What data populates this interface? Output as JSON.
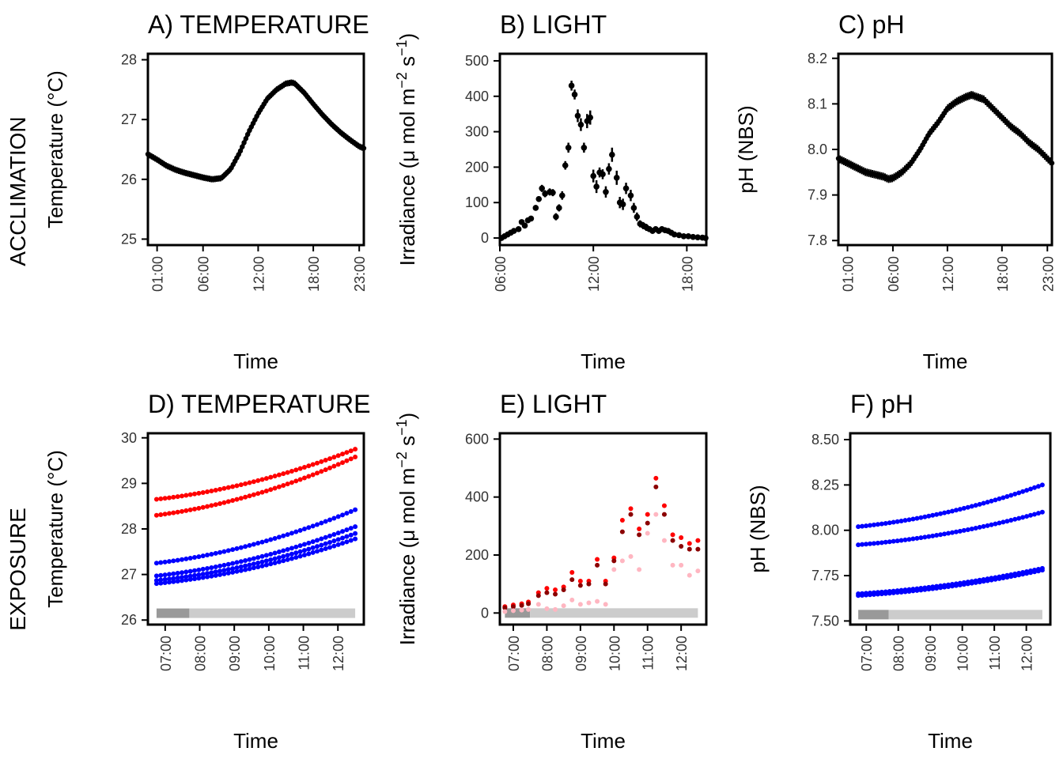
{
  "figure": {
    "row_labels": [
      "ACCLIMATION",
      "EXPOSURE"
    ]
  },
  "chart_data": [
    {
      "panel": "A",
      "type": "line",
      "title": "A) TEMPERATURE",
      "xlabel": "Time",
      "ylabel": "Temperature (°C)",
      "xlim": [
        0,
        23.5
      ],
      "ylim": [
        24.9,
        28.1
      ],
      "xtick_values": [
        1,
        6,
        12,
        18,
        23
      ],
      "xtick_labels": [
        "01:00",
        "06:00",
        "12:00",
        "18:00",
        "23:00"
      ],
      "ytick_values": [
        25,
        26,
        27,
        28
      ],
      "ytick_labels": [
        "25",
        "26",
        "27",
        "28"
      ],
      "style": "dense points with error bars",
      "color": "#000000",
      "series": [
        {
          "x": [
            0,
            1,
            2,
            3,
            4,
            5,
            6,
            7,
            8,
            9,
            10,
            11,
            12,
            13,
            14,
            15,
            15.7,
            16,
            17,
            18,
            19,
            20,
            21,
            22,
            23,
            23.5
          ],
          "y": [
            26.42,
            26.33,
            26.23,
            26.16,
            26.11,
            26.07,
            26.03,
            26.0,
            26.02,
            26.17,
            26.45,
            26.8,
            27.1,
            27.35,
            27.5,
            27.6,
            27.62,
            27.6,
            27.45,
            27.26,
            27.08,
            26.92,
            26.78,
            26.66,
            26.55,
            26.52
          ]
        }
      ]
    },
    {
      "panel": "B",
      "type": "scatter",
      "title": "B) LIGHT",
      "xlabel": "Time",
      "ylabel": "Irradiance (μ mol m⁻² s⁻¹)",
      "xlim": [
        6,
        19.25
      ],
      "ylim": [
        -20,
        520
      ],
      "xtick_values": [
        6,
        12,
        18
      ],
      "xtick_labels": [
        "06:00",
        "12:00",
        "18:00"
      ],
      "ytick_values": [
        0,
        100,
        200,
        300,
        400,
        500
      ],
      "ytick_labels": [
        "0",
        "100",
        "200",
        "300",
        "400",
        "500"
      ],
      "style": "points with error bars",
      "color": "#000000",
      "series": [
        {
          "x": [
            6.1,
            6.3,
            6.5,
            6.7,
            6.9,
            7.2,
            7.4,
            7.6,
            7.8,
            8.0,
            8.3,
            8.5,
            8.7,
            8.9,
            9.2,
            9.4,
            9.6,
            9.8,
            10.0,
            10.2,
            10.4,
            10.6,
            10.8,
            11.0,
            11.2,
            11.4,
            11.6,
            11.8,
            12.0,
            12.2,
            12.4,
            12.6,
            12.8,
            13.0,
            13.2,
            13.5,
            13.7,
            13.9,
            14.1,
            14.4,
            14.6,
            14.8,
            15.0,
            15.2,
            15.4,
            15.6,
            15.8,
            16.0,
            16.2,
            16.4,
            16.6,
            16.8,
            17.0,
            17.2,
            17.5,
            17.8,
            18.1,
            18.4,
            18.7,
            19.0,
            19.2
          ],
          "y": [
            0,
            5,
            10,
            15,
            20,
            25,
            45,
            35,
            50,
            55,
            85,
            110,
            140,
            125,
            130,
            128,
            60,
            85,
            120,
            205,
            255,
            430,
            405,
            345,
            320,
            255,
            330,
            340,
            175,
            145,
            185,
            180,
            130,
            195,
            235,
            170,
            100,
            95,
            140,
            120,
            85,
            60,
            40,
            35,
            30,
            25,
            20,
            25,
            20,
            25,
            22,
            20,
            15,
            10,
            8,
            5,
            5,
            3,
            2,
            1,
            0
          ],
          "err": [
            4,
            4,
            5,
            5,
            5,
            6,
            6,
            6,
            6,
            7,
            8,
            8,
            10,
            10,
            10,
            10,
            10,
            10,
            12,
            12,
            14,
            14,
            14,
            18,
            18,
            14,
            20,
            20,
            18,
            18,
            14,
            14,
            16,
            16,
            20,
            20,
            16,
            16,
            16,
            16,
            14,
            12,
            10,
            10,
            10,
            8,
            8,
            8,
            8,
            8,
            6,
            6,
            6,
            5,
            5,
            4,
            4,
            4,
            3,
            3,
            3
          ]
        }
      ]
    },
    {
      "panel": "C",
      "type": "line",
      "title": "C) pH",
      "xlabel": "Time",
      "ylabel": "pH (NBS)",
      "xlim": [
        0,
        23.5
      ],
      "ylim": [
        7.79,
        8.21
      ],
      "xtick_values": [
        1,
        6,
        12,
        18,
        23
      ],
      "xtick_labels": [
        "01:00",
        "06:00",
        "12:00",
        "18:00",
        "23:00"
      ],
      "ytick_values": [
        7.8,
        7.9,
        8.0,
        8.1,
        8.2
      ],
      "ytick_labels": [
        "7.8",
        "7.9",
        "8.0",
        "8.1",
        "8.2"
      ],
      "style": "dense points with error bars",
      "color": "#000000",
      "series": [
        {
          "x": [
            0,
            1,
            2,
            3,
            4,
            5,
            5.5,
            6,
            7,
            8,
            9,
            10,
            11,
            12,
            13,
            14,
            14.7,
            15,
            16,
            17,
            18,
            19,
            20,
            21,
            22,
            23,
            23.5
          ],
          "y": [
            7.98,
            7.97,
            7.96,
            7.95,
            7.945,
            7.94,
            7.935,
            7.937,
            7.95,
            7.97,
            8.0,
            8.035,
            8.06,
            8.09,
            8.105,
            8.115,
            8.12,
            8.117,
            8.11,
            8.09,
            8.07,
            8.05,
            8.035,
            8.015,
            8.0,
            7.98,
            7.97
          ]
        }
      ]
    },
    {
      "panel": "D",
      "type": "scatter",
      "title": "D) TEMPERATURE",
      "xlabel": "Time",
      "ylabel": "Temperature (°C)",
      "xlim": [
        6.5,
        12.75
      ],
      "ylim": [
        25.9,
        30.1
      ],
      "xtick_values": [
        7,
        8,
        9,
        10,
        11,
        12
      ],
      "xtick_labels": [
        "07:00",
        "08:00",
        "09:00",
        "10:00",
        "11:00",
        "12:00"
      ],
      "ytick_values": [
        26,
        27,
        28,
        29,
        30
      ],
      "ytick_labels": [
        "26",
        "27",
        "28",
        "29",
        "30"
      ],
      "x_range": [
        6.75,
        12.5
      ],
      "bars": [
        {
          "from": 6.75,
          "to": 7.7,
          "color": "#999999"
        },
        {
          "from": 7.7,
          "to": 12.5,
          "color": "#cccccc"
        }
      ],
      "bar_y": 26.15,
      "series": [
        {
          "color": "#ff0000",
          "start": 28.65,
          "end": 29.75
        },
        {
          "color": "#ff0000",
          "start": 28.3,
          "end": 29.58
        },
        {
          "color": "#0000ff",
          "start": 27.25,
          "end": 28.42
        },
        {
          "color": "#0000ff",
          "start": 26.97,
          "end": 28.05
        },
        {
          "color": "#0000ff",
          "start": 26.87,
          "end": 27.9
        },
        {
          "color": "#0000ff",
          "start": 26.8,
          "end": 27.78
        }
      ]
    },
    {
      "panel": "E",
      "type": "scatter",
      "title": "E) LIGHT",
      "xlabel": "Time",
      "ylabel": "Irradiance (μ mol m⁻² s⁻¹)",
      "xlim": [
        6.6,
        12.75
      ],
      "ylim": [
        -40,
        620
      ],
      "xtick_values": [
        7,
        8,
        9,
        10,
        11,
        12
      ],
      "xtick_labels": [
        "07:00",
        "08:00",
        "09:00",
        "10:00",
        "11:00",
        "12:00"
      ],
      "ytick_values": [
        0,
        200,
        400,
        600
      ],
      "ytick_labels": [
        "0",
        "200",
        "400",
        "600"
      ],
      "bars": [
        {
          "from": 6.75,
          "to": 7.5,
          "color": "#999999"
        },
        {
          "from": 7.5,
          "to": 12.5,
          "color": "#cccccc"
        }
      ],
      "bar_y": 0,
      "series": [
        {
          "color": "#ff0000",
          "x": [
            6.75,
            7.0,
            7.25,
            7.45,
            7.75,
            8.0,
            8.25,
            8.5,
            8.75,
            9.0,
            9.25,
            9.5,
            9.75,
            10.0,
            10.25,
            10.5,
            10.75,
            11.0,
            11.25,
            11.5,
            11.75,
            12.0,
            12.25,
            12.5
          ],
          "y": [
            22,
            28,
            32,
            38,
            70,
            85,
            80,
            90,
            140,
            110,
            110,
            185,
            110,
            190,
            320,
            360,
            290,
            340,
            465,
            370,
            270,
            260,
            240,
            250
          ]
        },
        {
          "color": "#8b0000",
          "x": [
            6.75,
            7.0,
            7.25,
            7.45,
            7.75,
            8.0,
            8.25,
            8.5,
            8.75,
            9.0,
            9.25,
            9.5,
            9.75,
            10.0,
            10.25,
            10.5,
            10.75,
            11.0,
            11.25,
            11.5,
            11.75,
            12.0,
            12.25,
            12.5
          ],
          "y": [
            18,
            22,
            26,
            32,
            60,
            70,
            65,
            80,
            115,
            95,
            100,
            165,
            100,
            180,
            280,
            340,
            270,
            310,
            435,
            340,
            250,
            230,
            220,
            220
          ]
        },
        {
          "color": "#ffb6c1",
          "x": [
            6.75,
            7.0,
            7.25,
            7.45,
            7.75,
            8.0,
            8.25,
            8.5,
            8.75,
            9.0,
            9.25,
            9.5,
            9.75,
            10.0,
            10.25,
            10.5,
            10.75,
            11.0,
            11.25,
            11.5,
            11.75,
            12.0,
            12.25,
            12.5
          ],
          "y": [
            5,
            8,
            10,
            12,
            30,
            15,
            12,
            25,
            45,
            30,
            35,
            40,
            30,
            150,
            180,
            195,
            150,
            275,
            340,
            250,
            165,
            165,
            130,
            145
          ]
        }
      ]
    },
    {
      "panel": "F",
      "type": "scatter",
      "title": "F) pH",
      "xlabel": "Time",
      "ylabel": "pH (NBS)",
      "xlim": [
        6.5,
        12.75
      ],
      "ylim": [
        7.48,
        8.535
      ],
      "xtick_values": [
        7,
        8,
        9,
        10,
        11,
        12
      ],
      "xtick_labels": [
        "07:00",
        "08:00",
        "09:00",
        "10:00",
        "11:00",
        "12:00"
      ],
      "ytick_values": [
        7.5,
        7.75,
        8.0,
        8.25,
        8.5
      ],
      "ytick_labels": [
        "7.50",
        "7.75",
        "8.00",
        "8.25",
        "8.50"
      ],
      "x_range": [
        6.75,
        12.5
      ],
      "bars": [
        {
          "from": 6.75,
          "to": 7.7,
          "color": "#999999"
        },
        {
          "from": 7.7,
          "to": 12.5,
          "color": "#cccccc"
        }
      ],
      "bar_y": 7.535,
      "series": [
        {
          "color": "#0000ff",
          "start": 8.02,
          "end": 8.25
        },
        {
          "color": "#0000ff",
          "start": 7.92,
          "end": 8.1
        },
        {
          "color": "#0000ff",
          "start": 7.65,
          "end": 7.79
        },
        {
          "color": "#0000ff",
          "start": 7.64,
          "end": 7.78
        }
      ]
    }
  ]
}
